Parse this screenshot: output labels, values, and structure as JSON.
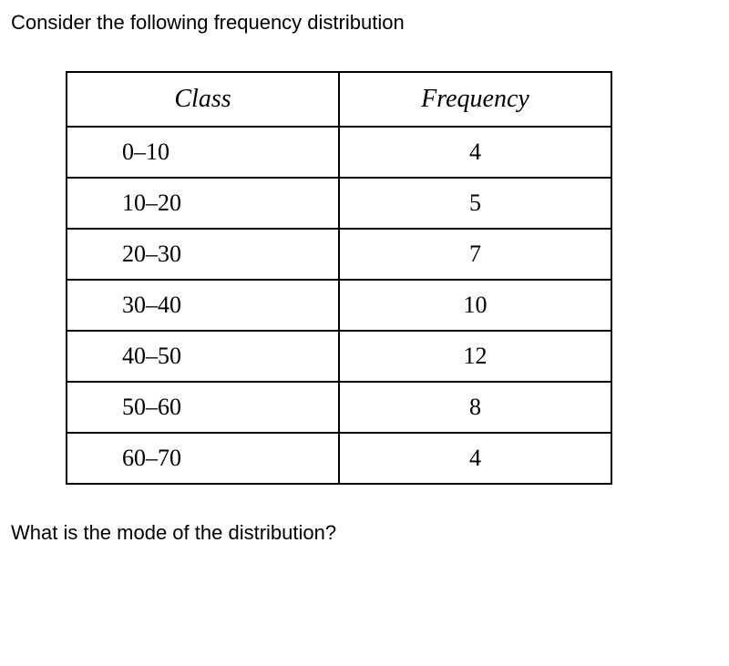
{
  "prompt": "Consider the following frequency distribution",
  "question": "What is the mode of the distribution?",
  "table": {
    "columns": [
      "Class",
      "Frequency"
    ],
    "rows": [
      [
        "0–10",
        "4"
      ],
      [
        "10–20",
        "5"
      ],
      [
        "20–30",
        "7"
      ],
      [
        "30–40",
        "10"
      ],
      [
        "40–50",
        "12"
      ],
      [
        "50–60",
        "8"
      ],
      [
        "60–70",
        "4"
      ]
    ],
    "header_font_style": "italic",
    "header_fontsize": 28,
    "cell_fontsize": 26,
    "border_color": "#000000",
    "border_width": 2,
    "background_color": "#ffffff",
    "text_color": "#000000",
    "column_widths": [
      "50%",
      "50%"
    ],
    "class_cell_align": "left",
    "freq_cell_align": "center"
  },
  "body_fontsize": 22,
  "body_text_color": "#000000",
  "body_background": "#ffffff"
}
